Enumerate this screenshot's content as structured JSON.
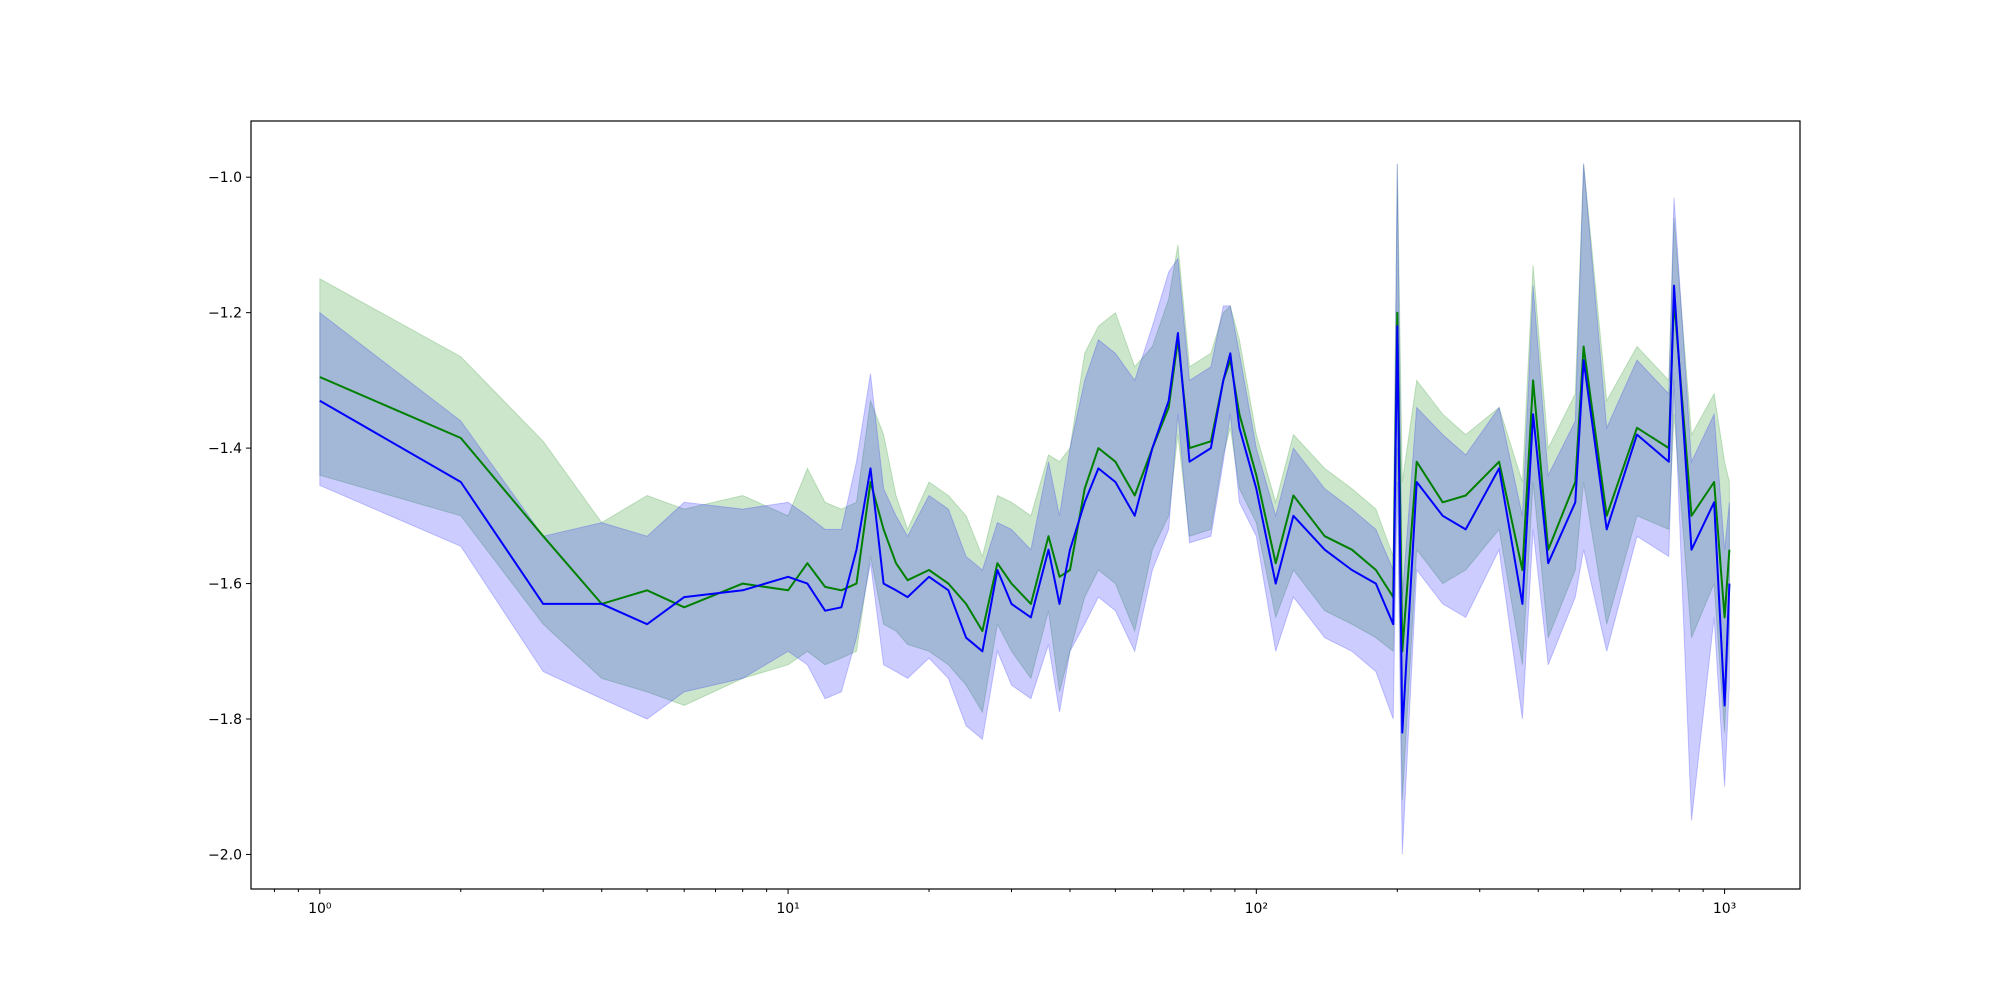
{
  "chart_data": {
    "type": "line",
    "xscale": "log",
    "xlim": [
      0.713,
      1449
    ],
    "ylim": [
      -2.051,
      -0.917
    ],
    "xticks": [
      {
        "value": 1,
        "label": "10⁰"
      },
      {
        "value": 10,
        "label": "10¹"
      },
      {
        "value": 100,
        "label": "10²"
      },
      {
        "value": 1000,
        "label": "10³"
      }
    ],
    "xminorticks": [
      0.8,
      0.9,
      2,
      3,
      4,
      5,
      6,
      7,
      8,
      9,
      20,
      30,
      40,
      50,
      60,
      70,
      80,
      90,
      200,
      300,
      400,
      500,
      600,
      700,
      800,
      900
    ],
    "yticks": [
      {
        "value": -2.0,
        "label": "−2.0"
      },
      {
        "value": -1.8,
        "label": "−1.8"
      },
      {
        "value": -1.6,
        "label": "−1.6"
      },
      {
        "value": -1.4,
        "label": "−1.4"
      },
      {
        "value": -1.2,
        "label": "−1.2"
      },
      {
        "value": -1.0,
        "label": "−1.0"
      }
    ],
    "x": [
      1,
      2,
      3,
      4,
      5,
      6,
      8,
      10,
      11,
      12,
      13,
      14,
      15,
      16,
      17,
      18,
      20,
      22,
      24,
      26,
      28,
      30,
      33,
      36,
      38,
      40,
      43,
      46,
      50,
      55,
      60,
      65,
      68,
      72,
      80,
      85,
      88,
      92,
      100,
      110,
      120,
      140,
      160,
      180,
      196,
      200,
      205,
      220,
      250,
      280,
      330,
      370,
      390,
      420,
      480,
      500,
      560,
      650,
      760,
      780,
      850,
      950,
      1000,
      1024
    ],
    "series": [
      {
        "color": "green",
        "band_opacity": 0.2,
        "values": [
          -1.295,
          -1.385,
          -1.53,
          -1.63,
          -1.61,
          -1.635,
          -1.6,
          -1.61,
          -1.57,
          -1.605,
          -1.61,
          -1.6,
          -1.45,
          -1.52,
          -1.57,
          -1.595,
          -1.58,
          -1.6,
          -1.63,
          -1.67,
          -1.57,
          -1.6,
          -1.63,
          -1.53,
          -1.59,
          -1.58,
          -1.46,
          -1.4,
          -1.42,
          -1.47,
          -1.4,
          -1.34,
          -1.24,
          -1.4,
          -1.39,
          -1.3,
          -1.27,
          -1.35,
          -1.44,
          -1.57,
          -1.47,
          -1.53,
          -1.55,
          -1.58,
          -1.62,
          -1.2,
          -1.7,
          -1.42,
          -1.48,
          -1.47,
          -1.42,
          -1.58,
          -1.3,
          -1.55,
          -1.45,
          -1.25,
          -1.5,
          -1.37,
          -1.4,
          -1.18,
          -1.5,
          -1.45,
          -1.65,
          -1.55
        ],
        "upper": [
          -1.15,
          -1.265,
          -1.39,
          -1.51,
          -1.47,
          -1.49,
          -1.47,
          -1.5,
          -1.43,
          -1.48,
          -1.49,
          -1.48,
          -1.33,
          -1.38,
          -1.47,
          -1.52,
          -1.45,
          -1.47,
          -1.5,
          -1.56,
          -1.47,
          -1.48,
          -1.5,
          -1.41,
          -1.42,
          -1.4,
          -1.26,
          -1.22,
          -1.2,
          -1.28,
          -1.25,
          -1.18,
          -1.1,
          -1.28,
          -1.26,
          -1.2,
          -1.19,
          -1.24,
          -1.38,
          -1.48,
          -1.38,
          -1.43,
          -1.46,
          -1.49,
          -1.56,
          -0.98,
          -1.45,
          -1.3,
          -1.35,
          -1.38,
          -1.34,
          -1.45,
          -1.13,
          -1.4,
          -1.32,
          -0.98,
          -1.33,
          -1.25,
          -1.3,
          -1.06,
          -1.38,
          -1.32,
          -1.42,
          -1.45
        ],
        "lower": [
          -1.44,
          -1.5,
          -1.66,
          -1.74,
          -1.76,
          -1.78,
          -1.74,
          -1.72,
          -1.7,
          -1.72,
          -1.71,
          -1.7,
          -1.56,
          -1.66,
          -1.67,
          -1.69,
          -1.7,
          -1.72,
          -1.75,
          -1.79,
          -1.66,
          -1.7,
          -1.74,
          -1.64,
          -1.76,
          -1.7,
          -1.62,
          -1.58,
          -1.6,
          -1.67,
          -1.55,
          -1.5,
          -1.38,
          -1.53,
          -1.52,
          -1.41,
          -1.37,
          -1.46,
          -1.51,
          -1.65,
          -1.58,
          -1.64,
          -1.66,
          -1.68,
          -1.7,
          -1.4,
          -1.92,
          -1.55,
          -1.6,
          -1.58,
          -1.52,
          -1.72,
          -1.45,
          -1.68,
          -1.58,
          -1.45,
          -1.66,
          -1.5,
          -1.52,
          -1.35,
          -1.68,
          -1.6,
          -1.82,
          -1.66
        ]
      },
      {
        "color": "blue",
        "band_opacity": 0.2,
        "values": [
          -1.33,
          -1.45,
          -1.63,
          -1.63,
          -1.66,
          -1.62,
          -1.61,
          -1.59,
          -1.6,
          -1.64,
          -1.635,
          -1.55,
          -1.43,
          -1.6,
          -1.61,
          -1.62,
          -1.59,
          -1.61,
          -1.68,
          -1.7,
          -1.58,
          -1.63,
          -1.65,
          -1.55,
          -1.63,
          -1.55,
          -1.48,
          -1.43,
          -1.45,
          -1.5,
          -1.4,
          -1.33,
          -1.23,
          -1.42,
          -1.4,
          -1.3,
          -1.26,
          -1.37,
          -1.46,
          -1.6,
          -1.5,
          -1.55,
          -1.58,
          -1.6,
          -1.66,
          -1.22,
          -1.82,
          -1.45,
          -1.5,
          -1.52,
          -1.43,
          -1.63,
          -1.35,
          -1.57,
          -1.48,
          -1.27,
          -1.52,
          -1.38,
          -1.42,
          -1.16,
          -1.55,
          -1.48,
          -1.78,
          -1.6
        ],
        "upper": [
          -1.2,
          -1.36,
          -1.53,
          -1.51,
          -1.53,
          -1.48,
          -1.49,
          -1.48,
          -1.5,
          -1.52,
          -1.52,
          -1.42,
          -1.29,
          -1.46,
          -1.5,
          -1.53,
          -1.47,
          -1.49,
          -1.56,
          -1.58,
          -1.51,
          -1.52,
          -1.55,
          -1.42,
          -1.5,
          -1.4,
          -1.3,
          -1.24,
          -1.26,
          -1.3,
          -1.22,
          -1.14,
          -1.12,
          -1.3,
          -1.28,
          -1.19,
          -1.19,
          -1.26,
          -1.4,
          -1.5,
          -1.4,
          -1.46,
          -1.49,
          -1.52,
          -1.58,
          -0.98,
          -1.62,
          -1.34,
          -1.38,
          -1.41,
          -1.34,
          -1.5,
          -1.16,
          -1.44,
          -1.36,
          -0.98,
          -1.37,
          -1.27,
          -1.32,
          -1.03,
          -1.42,
          -1.35,
          -1.55,
          -1.48
        ],
        "lower": [
          -1.455,
          -1.545,
          -1.73,
          -1.77,
          -1.8,
          -1.76,
          -1.74,
          -1.7,
          -1.72,
          -1.77,
          -1.76,
          -1.68,
          -1.57,
          -1.72,
          -1.73,
          -1.74,
          -1.71,
          -1.74,
          -1.81,
          -1.83,
          -1.7,
          -1.75,
          -1.77,
          -1.69,
          -1.79,
          -1.7,
          -1.66,
          -1.62,
          -1.64,
          -1.7,
          -1.58,
          -1.52,
          -1.35,
          -1.54,
          -1.53,
          -1.42,
          -1.35,
          -1.48,
          -1.53,
          -1.7,
          -1.62,
          -1.68,
          -1.7,
          -1.73,
          -1.8,
          -1.45,
          -2.0,
          -1.58,
          -1.63,
          -1.65,
          -1.55,
          -1.8,
          -1.52,
          -1.72,
          -1.62,
          -1.55,
          -1.7,
          -1.53,
          -1.56,
          -1.3,
          -1.95,
          -1.65,
          -1.9,
          -1.75
        ]
      }
    ]
  }
}
